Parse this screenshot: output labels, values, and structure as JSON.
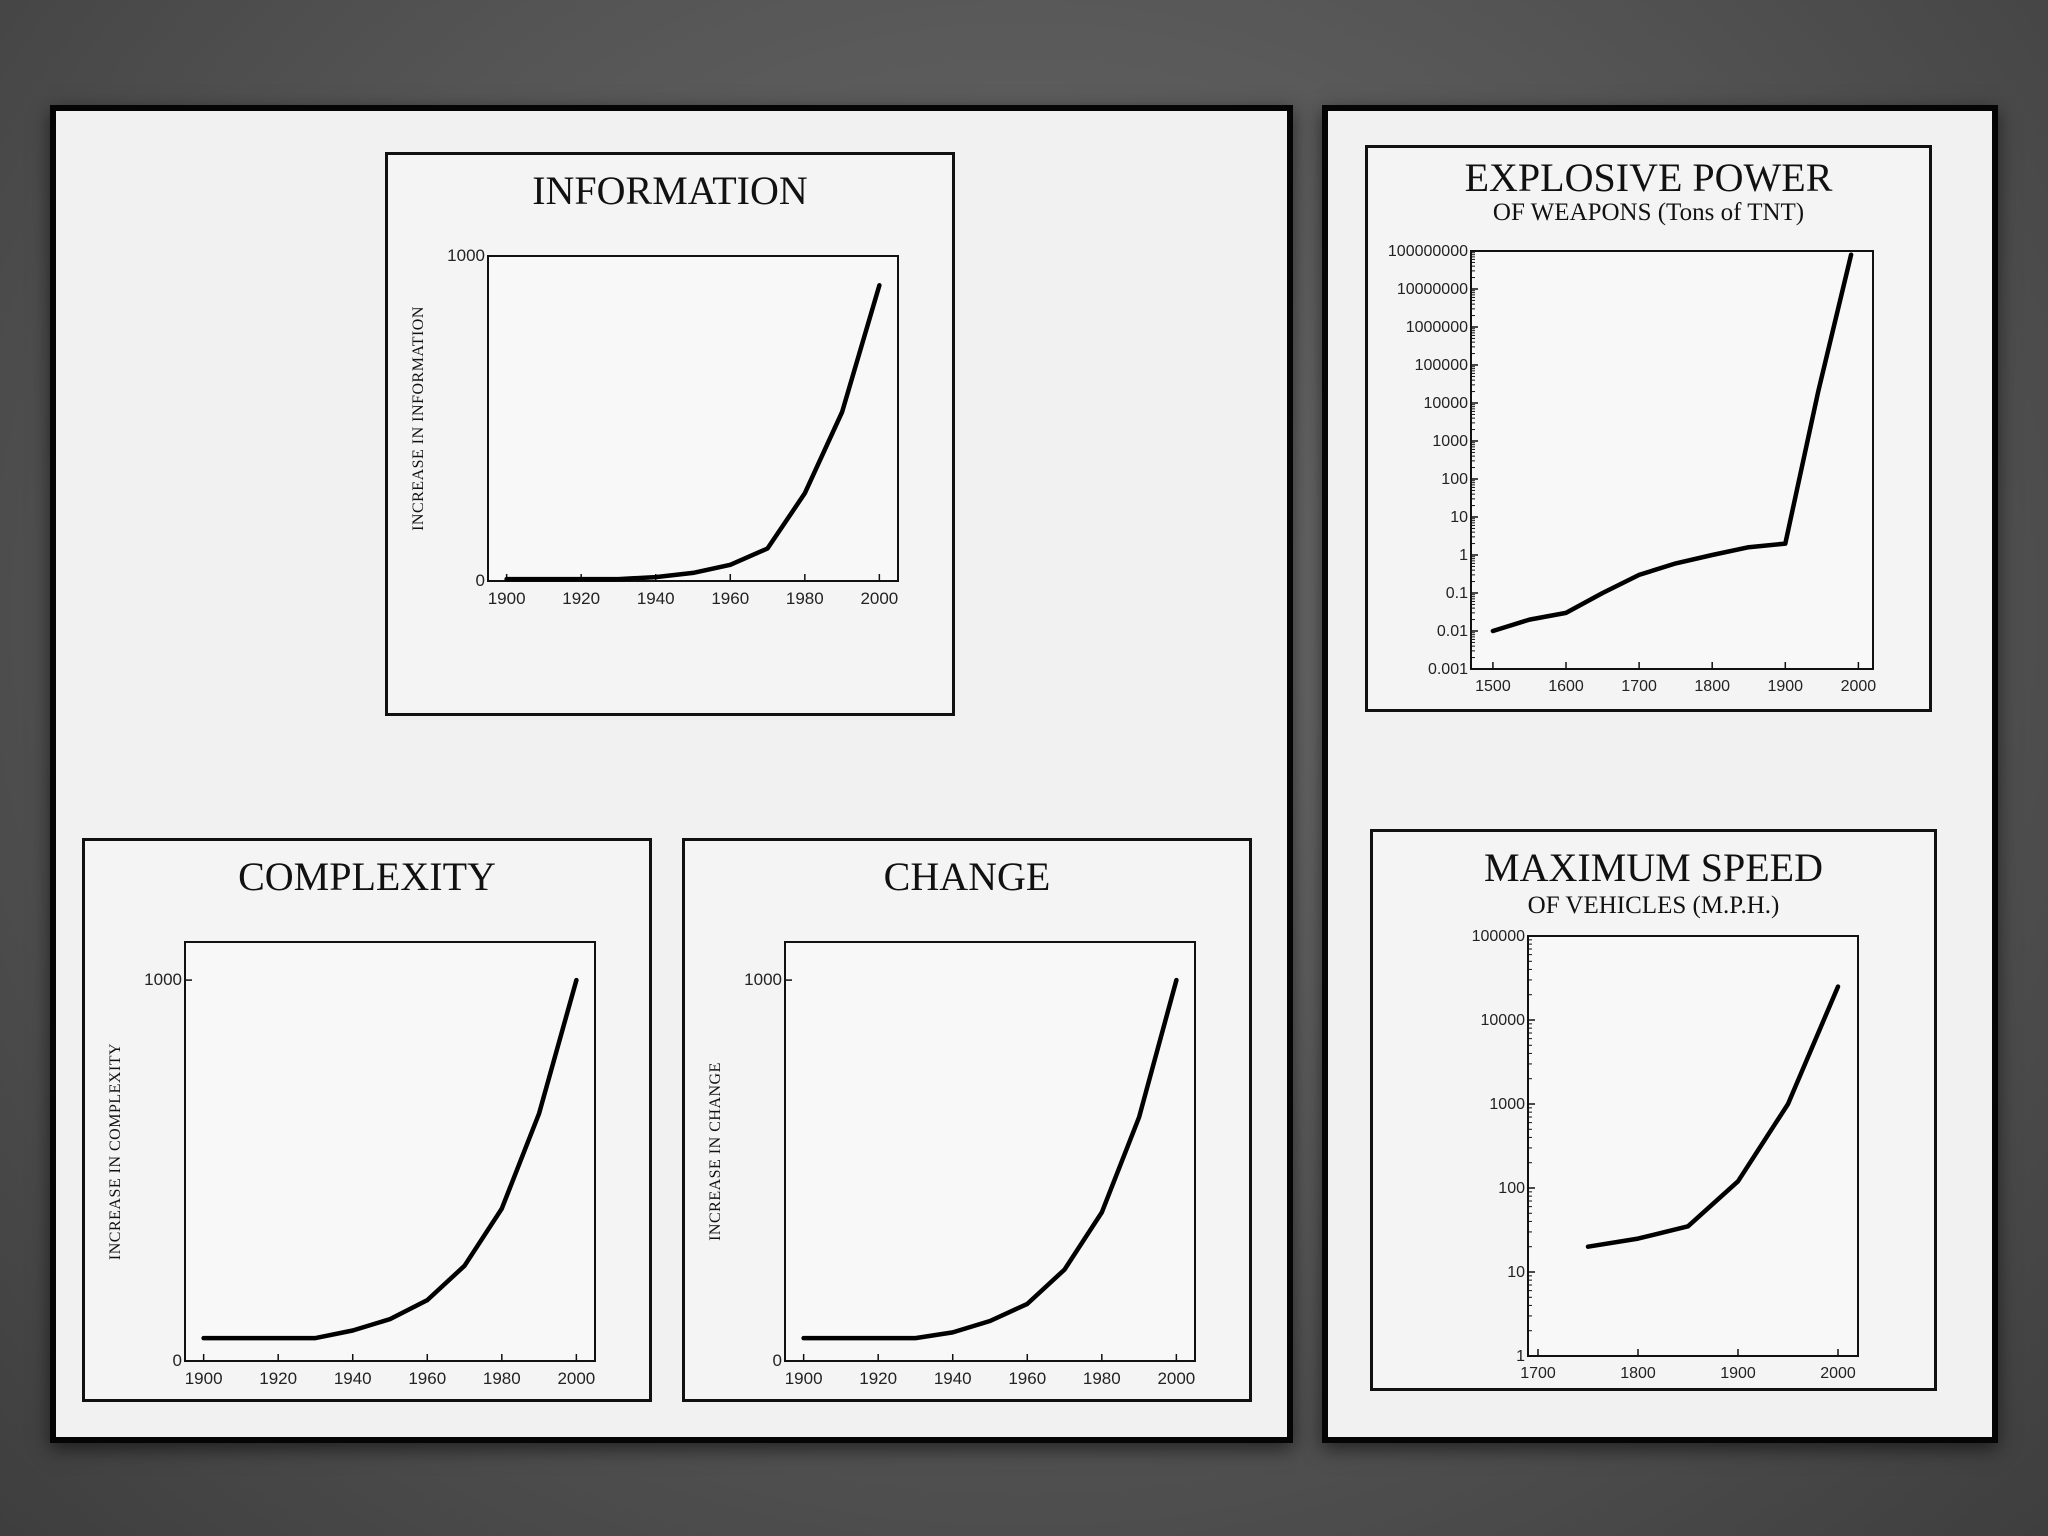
{
  "chart_data": [
    {
      "type": "line",
      "title": "INFORMATION",
      "ylabel": "INCREASE IN INFORMATION",
      "x": [
        1900,
        1910,
        1920,
        1930,
        1940,
        1950,
        1960,
        1970,
        1980,
        1990,
        2000
      ],
      "series": [
        {
          "values": [
            6,
            6,
            6,
            6,
            12,
            25,
            50,
            100,
            270,
            520,
            910
          ]
        }
      ],
      "xlim": [
        1895,
        2005
      ],
      "ylim": [
        0,
        1000
      ],
      "x_ticks": [
        "1900",
        "1920",
        "1940",
        "1960",
        "1980",
        "2000"
      ],
      "y_ticks": [
        "0",
        "1000"
      ],
      "grid": false
    },
    {
      "type": "line",
      "title": "COMPLEXITY",
      "ylabel": "INCREASE IN COMPLEXITY",
      "x": [
        1900,
        1910,
        1920,
        1930,
        1940,
        1950,
        1960,
        1970,
        1980,
        1990,
        2000
      ],
      "series": [
        {
          "values": [
            60,
            60,
            60,
            60,
            80,
            110,
            160,
            250,
            400,
            650,
            1000
          ]
        }
      ],
      "xlim": [
        1895,
        2005
      ],
      "ylim": [
        0,
        1100
      ],
      "x_ticks": [
        "1900",
        "1920",
        "1940",
        "1960",
        "1980",
        "2000"
      ],
      "y_ticks": [
        "0",
        "1000"
      ],
      "grid": false
    },
    {
      "type": "line",
      "title": "CHANGE",
      "ylabel": "INCREASE IN CHANGE",
      "x": [
        1900,
        1910,
        1920,
        1930,
        1940,
        1950,
        1960,
        1970,
        1980,
        1990,
        2000
      ],
      "series": [
        {
          "values": [
            60,
            60,
            60,
            60,
            75,
            105,
            150,
            240,
            390,
            640,
            1000
          ]
        }
      ],
      "xlim": [
        1895,
        2005
      ],
      "ylim": [
        0,
        1100
      ],
      "x_ticks": [
        "1900",
        "1920",
        "1940",
        "1960",
        "1980",
        "2000"
      ],
      "y_ticks": [
        "0",
        "1000"
      ],
      "grid": false
    },
    {
      "type": "line",
      "title": "EXPLOSIVE POWER",
      "subtitle": "OF WEAPONS (Tons of TNT)",
      "x": [
        1500,
        1550,
        1600,
        1650,
        1700,
        1750,
        1800,
        1850,
        1900,
        1945,
        1990
      ],
      "series": [
        {
          "values": [
            0.01,
            0.02,
            0.03,
            0.1,
            0.3,
            0.6,
            1,
            1.6,
            2,
            20000,
            80000000
          ]
        }
      ],
      "xlim": [
        1470,
        2020
      ],
      "ylim": [
        0.001,
        100000000
      ],
      "yscale": "log",
      "x_ticks": [
        "1500",
        "1600",
        "1700",
        "1800",
        "1900",
        "2000"
      ],
      "y_ticks": [
        "0.001",
        "0.01",
        "0.1",
        "1",
        "10",
        "100",
        "1000",
        "10000",
        "100000",
        "1000000",
        "10000000",
        "100000000"
      ],
      "grid": false
    },
    {
      "type": "line",
      "title": "MAXIMUM SPEED",
      "subtitle": "OF VEHICLES (M.P.H.)",
      "x": [
        1750,
        1800,
        1850,
        1900,
        1950,
        2000
      ],
      "series": [
        {
          "values": [
            20,
            25,
            35,
            120,
            1000,
            25000
          ]
        }
      ],
      "xlim": [
        1690,
        2020
      ],
      "ylim": [
        1,
        100000
      ],
      "yscale": "log",
      "x_ticks": [
        "1700",
        "1800",
        "1900",
        "2000"
      ],
      "y_ticks": [
        "1",
        "10",
        "100",
        "1000",
        "10000",
        "100000"
      ],
      "grid": false
    }
  ]
}
